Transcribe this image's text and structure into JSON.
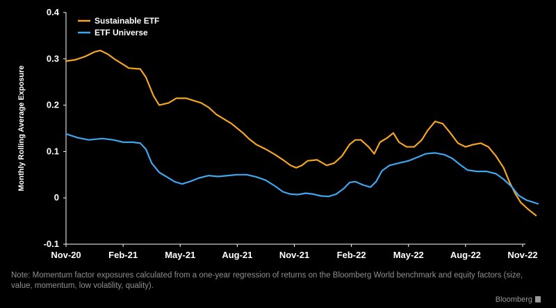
{
  "chart_data": {
    "type": "line",
    "ylabel": "Monthly Rolling Average Exposure",
    "ylim": [
      -0.1,
      0.4
    ],
    "yticks": [
      {
        "value": 0.4,
        "label": "0.4"
      },
      {
        "value": 0.3,
        "label": "0.3"
      },
      {
        "value": 0.2,
        "label": "0.2"
      },
      {
        "value": 0.1,
        "label": "0.1"
      },
      {
        "value": 0,
        "label": "0"
      },
      {
        "value": -0.1,
        "label": "-0.1"
      }
    ],
    "xlim": [
      0,
      24
    ],
    "xticks": [
      {
        "value": 0,
        "label": "Nov-20"
      },
      {
        "value": 3,
        "label": "Feb-21"
      },
      {
        "value": 6,
        "label": "May-21"
      },
      {
        "value": 9,
        "label": "Aug-21"
      },
      {
        "value": 12,
        "label": "Nov-21"
      },
      {
        "value": 15,
        "label": "Feb-22"
      },
      {
        "value": 18,
        "label": "May-22"
      },
      {
        "value": 21,
        "label": "Aug-22"
      },
      {
        "value": 24,
        "label": "Nov-22"
      }
    ],
    "legend_placement": "top-left",
    "series": [
      {
        "name": "Sustainable ETF",
        "color": "#f5a623",
        "points": [
          [
            0,
            0.295
          ],
          [
            0.5,
            0.298
          ],
          [
            1.0,
            0.305
          ],
          [
            1.5,
            0.315
          ],
          [
            1.8,
            0.318
          ],
          [
            2.2,
            0.31
          ],
          [
            2.6,
            0.298
          ],
          [
            3.0,
            0.288
          ],
          [
            3.3,
            0.28
          ],
          [
            3.9,
            0.278
          ],
          [
            4.2,
            0.26
          ],
          [
            4.6,
            0.22
          ],
          [
            4.9,
            0.2
          ],
          [
            5.4,
            0.205
          ],
          [
            5.8,
            0.215
          ],
          [
            6.3,
            0.215
          ],
          [
            6.7,
            0.21
          ],
          [
            7.1,
            0.205
          ],
          [
            7.5,
            0.195
          ],
          [
            7.9,
            0.18
          ],
          [
            8.3,
            0.17
          ],
          [
            8.7,
            0.16
          ],
          [
            9.0,
            0.15
          ],
          [
            9.3,
            0.14
          ],
          [
            9.6,
            0.128
          ],
          [
            10.0,
            0.115
          ],
          [
            10.5,
            0.105
          ],
          [
            11.0,
            0.093
          ],
          [
            11.4,
            0.082
          ],
          [
            11.8,
            0.07
          ],
          [
            12.1,
            0.065
          ],
          [
            12.4,
            0.07
          ],
          [
            12.7,
            0.08
          ],
          [
            13.2,
            0.082
          ],
          [
            13.7,
            0.07
          ],
          [
            14.1,
            0.075
          ],
          [
            14.5,
            0.09
          ],
          [
            14.9,
            0.115
          ],
          [
            15.2,
            0.125
          ],
          [
            15.5,
            0.125
          ],
          [
            15.9,
            0.11
          ],
          [
            16.2,
            0.095
          ],
          [
            16.5,
            0.12
          ],
          [
            16.9,
            0.13
          ],
          [
            17.2,
            0.14
          ],
          [
            17.5,
            0.12
          ],
          [
            17.9,
            0.11
          ],
          [
            18.3,
            0.11
          ],
          [
            18.7,
            0.125
          ],
          [
            19.0,
            0.145
          ],
          [
            19.4,
            0.165
          ],
          [
            19.8,
            0.16
          ],
          [
            20.2,
            0.14
          ],
          [
            20.6,
            0.118
          ],
          [
            21.0,
            0.11
          ],
          [
            21.4,
            0.115
          ],
          [
            21.8,
            0.118
          ],
          [
            22.2,
            0.11
          ],
          [
            22.6,
            0.09
          ],
          [
            23.0,
            0.065
          ],
          [
            23.3,
            0.035
          ],
          [
            23.6,
            0.01
          ],
          [
            23.9,
            -0.01
          ],
          [
            24.3,
            -0.025
          ],
          [
            24.7,
            -0.038
          ]
        ]
      },
      {
        "name": "ETF Universe",
        "color": "#3fa7f0",
        "points": [
          [
            0,
            0.138
          ],
          [
            0.6,
            0.13
          ],
          [
            1.2,
            0.125
          ],
          [
            1.9,
            0.128
          ],
          [
            2.5,
            0.125
          ],
          [
            3.0,
            0.12
          ],
          [
            3.5,
            0.12
          ],
          [
            3.9,
            0.118
          ],
          [
            4.2,
            0.105
          ],
          [
            4.5,
            0.075
          ],
          [
            4.9,
            0.055
          ],
          [
            5.3,
            0.045
          ],
          [
            5.7,
            0.035
          ],
          [
            6.1,
            0.03
          ],
          [
            6.5,
            0.035
          ],
          [
            7.0,
            0.043
          ],
          [
            7.5,
            0.048
          ],
          [
            8.0,
            0.046
          ],
          [
            8.5,
            0.048
          ],
          [
            9.0,
            0.05
          ],
          [
            9.5,
            0.05
          ],
          [
            10.0,
            0.045
          ],
          [
            10.5,
            0.038
          ],
          [
            11.0,
            0.025
          ],
          [
            11.4,
            0.013
          ],
          [
            11.8,
            0.008
          ],
          [
            12.2,
            0.007
          ],
          [
            12.6,
            0.01
          ],
          [
            13.0,
            0.008
          ],
          [
            13.4,
            0.004
          ],
          [
            13.8,
            0.003
          ],
          [
            14.2,
            0.008
          ],
          [
            14.6,
            0.02
          ],
          [
            14.9,
            0.033
          ],
          [
            15.2,
            0.035
          ],
          [
            15.6,
            0.028
          ],
          [
            16.0,
            0.023
          ],
          [
            16.3,
            0.035
          ],
          [
            16.6,
            0.058
          ],
          [
            17.0,
            0.07
          ],
          [
            17.5,
            0.075
          ],
          [
            18.0,
            0.08
          ],
          [
            18.5,
            0.088
          ],
          [
            18.9,
            0.095
          ],
          [
            19.4,
            0.097
          ],
          [
            19.9,
            0.093
          ],
          [
            20.3,
            0.085
          ],
          [
            20.7,
            0.072
          ],
          [
            21.1,
            0.06
          ],
          [
            21.6,
            0.057
          ],
          [
            22.1,
            0.057
          ],
          [
            22.6,
            0.052
          ],
          [
            23.0,
            0.04
          ],
          [
            23.4,
            0.025
          ],
          [
            23.8,
            0.005
          ],
          [
            24.2,
            -0.005
          ],
          [
            24.6,
            -0.01
          ],
          [
            24.8,
            -0.013
          ]
        ]
      }
    ]
  },
  "note": "Note: Momentum factor exposures calculated from a one-year regression of returns on the Bloomberg World benchmark and equity factors (size, value, momentum, low volatility, quality).",
  "brand": "Bloomberg",
  "colors": {
    "background": "#000000",
    "axis": "#ffffff",
    "sustainable": "#f5a623",
    "universe": "#3fa7f0",
    "note": "#8f8f8f"
  }
}
